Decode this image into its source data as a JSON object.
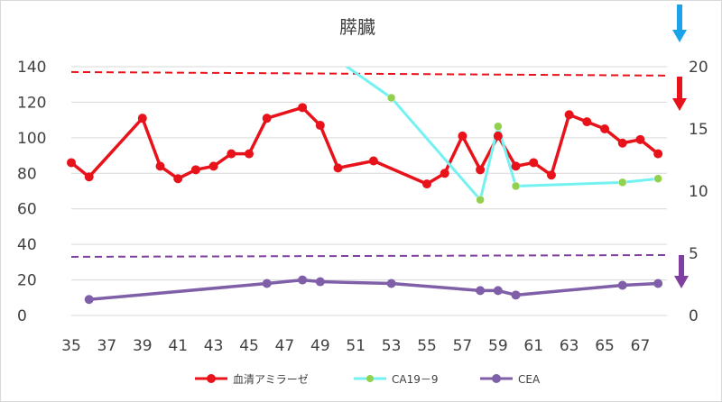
{
  "chart_data": {
    "type": "line",
    "title": "膵臓",
    "x_ticks": [
      "35",
      "37",
      "39",
      "41",
      "43",
      "45",
      "47",
      "49",
      "51",
      "53",
      "55",
      "57",
      "59",
      "61",
      "63",
      "65",
      "67"
    ],
    "xlim": [
      35,
      68.5
    ],
    "y_left": {
      "lim": [
        0,
        140
      ],
      "ticks": [
        "0",
        "20",
        "40",
        "60",
        "80",
        "100",
        "120",
        "140"
      ]
    },
    "y_right": {
      "lim": [
        0,
        20
      ],
      "ticks": [
        "0",
        "5",
        "10",
        "15",
        "20"
      ]
    },
    "series": [
      {
        "name": "血清アミラーゼ",
        "axis": "left",
        "color": "#e8121a",
        "marker_color": "#e8121a",
        "x": [
          35,
          36,
          39,
          40,
          41,
          42,
          43,
          44,
          45,
          46,
          48,
          49,
          50,
          52,
          55,
          56,
          57,
          58,
          59,
          60,
          61,
          62,
          63,
          64,
          65,
          66,
          67,
          68
        ],
        "y": [
          86,
          78,
          111,
          84,
          77,
          82,
          84,
          91,
          91,
          111,
          117,
          107,
          83,
          87,
          74,
          80,
          101,
          82,
          101,
          84,
          86,
          79,
          113,
          109,
          105,
          97,
          99,
          91
        ]
      },
      {
        "name": "CA19－9",
        "axis": "right",
        "color": "#74f2f2",
        "marker_color": "#92d050",
        "x": [
          50.5,
          53,
          58,
          59,
          60,
          66,
          68
        ],
        "y": [
          20,
          17.5,
          9.3,
          15.2,
          10.4,
          10.7,
          11
        ],
        "marker_x": [
          53,
          58,
          59,
          60,
          66,
          68
        ],
        "marker_y": [
          17.5,
          9.3,
          15.2,
          10.4,
          10.7,
          11
        ]
      },
      {
        "name": "CEA",
        "axis": "left",
        "color": "#7f5fa8",
        "marker_color": "#7f5fa8",
        "x": [
          36,
          46,
          48,
          49,
          53,
          58,
          59,
          60,
          66,
          68
        ],
        "y": [
          9,
          18,
          20,
          19,
          18,
          14,
          14,
          11.5,
          17,
          18
        ]
      }
    ],
    "reference_lines": [
      {
        "axis": "left",
        "y_start": 137,
        "y_end": 135,
        "color": "#e8121a",
        "style": "dashed"
      },
      {
        "axis": "left",
        "y_start": 33,
        "y_end": 34,
        "color": "#7f3fa0",
        "style": "dashed"
      }
    ],
    "annotations": [
      {
        "kind": "arrow-down",
        "color": "#1aa3e8",
        "where": "top-right above axis"
      },
      {
        "kind": "arrow-down",
        "color": "#e8121a",
        "where": "right, below 20 tick"
      },
      {
        "kind": "arrow-down",
        "color": "#7f3fa0",
        "where": "right, below 5 tick"
      }
    ],
    "grid": "horizontal",
    "legend_position": "bottom"
  }
}
